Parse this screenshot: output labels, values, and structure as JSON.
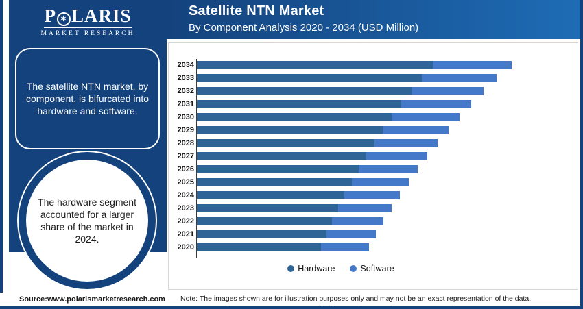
{
  "theme": {
    "navy": "#14427C",
    "header_gradient_right": "#1E6CB5",
    "hardware_color": "#2E6496",
    "software_color": "#4478C8"
  },
  "sidebar": {
    "logo": {
      "brand_p": "P",
      "brand_rest": "LARIS",
      "star_icon": "✶",
      "subtitle": "MARKET RESEARCH"
    },
    "callout_text": "The satellite NTN market, by component, is bifurcated into hardware and software.",
    "circle_text": "The hardware segment accounted for a larger share of the market in 2024."
  },
  "header": {
    "title": "Satellite NTN Market",
    "subtitle": "By Component Analysis 2020 - 2034 (USD Million)"
  },
  "footer": {
    "source": "Source:www.polarismarketresearch.com",
    "note": "Note: The images shown are for illustration purposes only and may not be an exact representation of the data."
  },
  "chart_data": {
    "type": "bar",
    "orientation": "horizontal",
    "stacked": true,
    "title": "Satellite NTN Market",
    "subtitle": "By Component Analysis 2020 - 2034 (USD Million)",
    "value_axis_labels_visible": false,
    "units": "relative (value axis unlabeled; values estimated from bar lengths, px)",
    "legend_position": "bottom",
    "categories": [
      "2034",
      "2033",
      "2032",
      "2031",
      "2030",
      "2029",
      "2028",
      "2027",
      "2026",
      "2025",
      "2024",
      "2023",
      "2022",
      "2021",
      "2020"
    ],
    "series": [
      {
        "name": "Hardware",
        "color": "#2E6496",
        "values": [
          344,
          328,
          313,
          298,
          284,
          271,
          259,
          247,
          236,
          226,
          215,
          206,
          197,
          189,
          181
        ]
      },
      {
        "name": "Software",
        "color": "#4478C8",
        "values": [
          115,
          109,
          105,
          102,
          99,
          96,
          92,
          89,
          86,
          83,
          81,
          78,
          75,
          72,
          70
        ]
      }
    ]
  }
}
